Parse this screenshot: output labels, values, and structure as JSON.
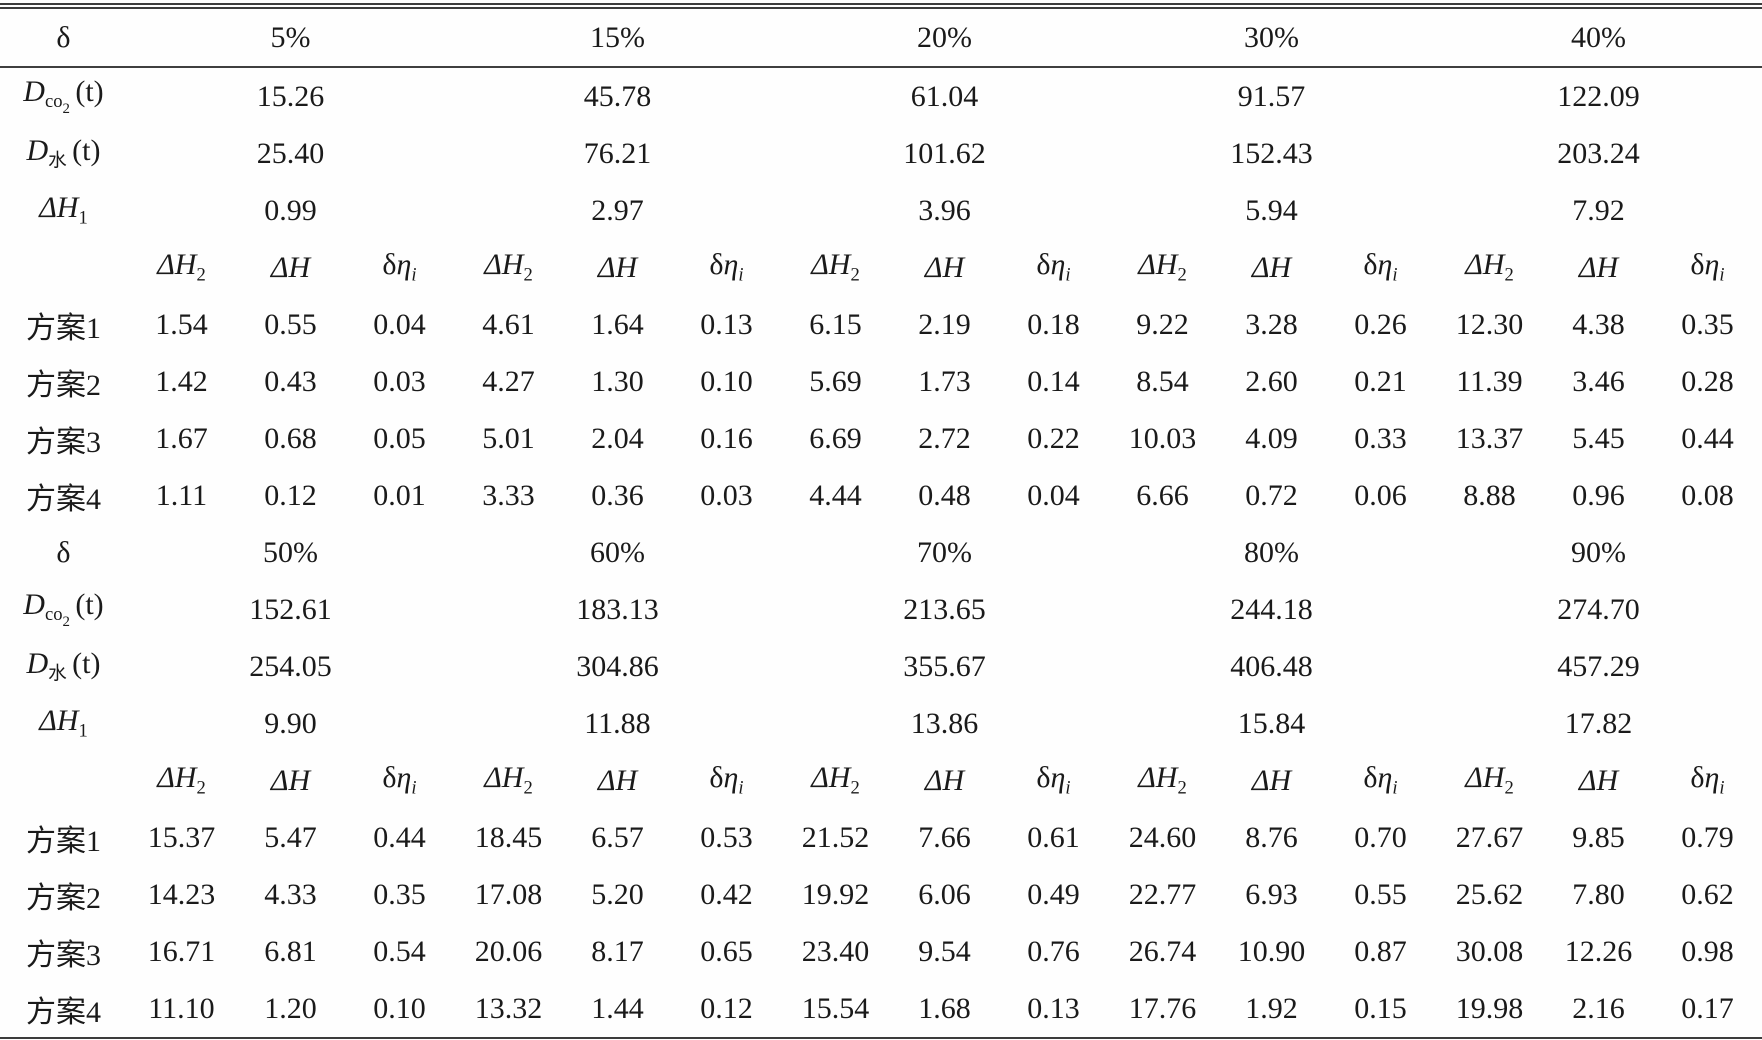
{
  "colors": {
    "background": "#fefefe",
    "text": "#1a1a1a",
    "rule": "#3c3c3c"
  },
  "labels": {
    "delta": "δ",
    "d_base": "D",
    "d_co2_sub": "co",
    "d_co2_subsub": "2",
    "d_unit": "(t)",
    "d_water_sub": "水",
    "dh_base": "ΔH",
    "dh1_sub": "1",
    "dh2_sub": "2",
    "deta_delta": "δ",
    "deta_eta": "η",
    "deta_sub": "i"
  },
  "sections": [
    {
      "percentages": [
        "5%",
        "15%",
        "20%",
        "30%",
        "40%"
      ],
      "d_co2": [
        "15.26",
        "45.78",
        "61.04",
        "91.57",
        "122.09"
      ],
      "d_water": [
        "25.40",
        "76.21",
        "101.62",
        "152.43",
        "203.24"
      ],
      "dh1": [
        "0.99",
        "2.97",
        "3.96",
        "5.94",
        "7.92"
      ],
      "schemes": [
        {
          "label": "方案1",
          "values": [
            "1.54",
            "0.55",
            "0.04",
            "4.61",
            "1.64",
            "0.13",
            "6.15",
            "2.19",
            "0.18",
            "9.22",
            "3.28",
            "0.26",
            "12.30",
            "4.38",
            "0.35"
          ]
        },
        {
          "label": "方案2",
          "values": [
            "1.42",
            "0.43",
            "0.03",
            "4.27",
            "1.30",
            "0.10",
            "5.69",
            "1.73",
            "0.14",
            "8.54",
            "2.60",
            "0.21",
            "11.39",
            "3.46",
            "0.28"
          ]
        },
        {
          "label": "方案3",
          "values": [
            "1.67",
            "0.68",
            "0.05",
            "5.01",
            "2.04",
            "0.16",
            "6.69",
            "2.72",
            "0.22",
            "10.03",
            "4.09",
            "0.33",
            "13.37",
            "5.45",
            "0.44"
          ]
        },
        {
          "label": "方案4",
          "values": [
            "1.11",
            "0.12",
            "0.01",
            "3.33",
            "0.36",
            "0.03",
            "4.44",
            "0.48",
            "0.04",
            "6.66",
            "0.72",
            "0.06",
            "8.88",
            "0.96",
            "0.08"
          ]
        }
      ]
    },
    {
      "percentages": [
        "50%",
        "60%",
        "70%",
        "80%",
        "90%"
      ],
      "d_co2": [
        "152.61",
        "183.13",
        "213.65",
        "244.18",
        "274.70"
      ],
      "d_water": [
        "254.05",
        "304.86",
        "355.67",
        "406.48",
        "457.29"
      ],
      "dh1": [
        "9.90",
        "11.88",
        "13.86",
        "15.84",
        "17.82"
      ],
      "schemes": [
        {
          "label": "方案1",
          "values": [
            "15.37",
            "5.47",
            "0.44",
            "18.45",
            "6.57",
            "0.53",
            "21.52",
            "7.66",
            "0.61",
            "24.60",
            "8.76",
            "0.70",
            "27.67",
            "9.85",
            "0.79"
          ]
        },
        {
          "label": "方案2",
          "values": [
            "14.23",
            "4.33",
            "0.35",
            "17.08",
            "5.20",
            "0.42",
            "19.92",
            "6.06",
            "0.49",
            "22.77",
            "6.93",
            "0.55",
            "25.62",
            "7.80",
            "0.62"
          ]
        },
        {
          "label": "方案3",
          "values": [
            "16.71",
            "6.81",
            "0.54",
            "20.06",
            "8.17",
            "0.65",
            "23.40",
            "9.54",
            "0.76",
            "26.74",
            "10.90",
            "0.87",
            "30.08",
            "12.26",
            "0.98"
          ]
        },
        {
          "label": "方案4",
          "values": [
            "11.10",
            "1.20",
            "0.10",
            "13.32",
            "1.44",
            "0.12",
            "15.54",
            "1.68",
            "0.13",
            "17.76",
            "1.92",
            "0.15",
            "19.98",
            "2.16",
            "0.17"
          ]
        }
      ]
    }
  ]
}
